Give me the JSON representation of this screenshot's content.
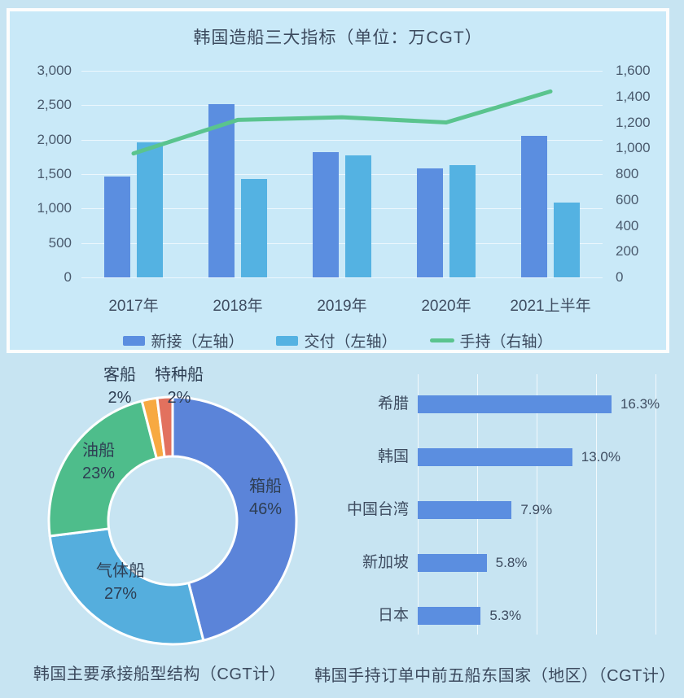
{
  "chart_data": [
    {
      "type": "bar",
      "name": "combo",
      "title": "韩国造船三大指标（单位：万CGT）",
      "categories": [
        "2017年",
        "2018年",
        "2019年",
        "2020年",
        "2021上半年"
      ],
      "left_axis": {
        "min": 0,
        "max": 3000,
        "ticks": [
          "3,000",
          "2,500",
          "2,000",
          "1,500",
          "1,000",
          "500",
          "0"
        ]
      },
      "right_axis": {
        "min": 0,
        "max": 1600,
        "ticks": [
          "1,600",
          "1,400",
          "1,200",
          "1,000",
          "800",
          "600",
          "400",
          "200",
          "0"
        ]
      },
      "series": [
        {
          "name": "新接（左轴）",
          "type": "bar",
          "axis": "left",
          "color": "#5b8ee0",
          "values": [
            1470,
            2520,
            1820,
            1580,
            2050
          ]
        },
        {
          "name": "交付（左轴）",
          "type": "bar",
          "axis": "left",
          "color": "#54b2e2",
          "values": [
            1960,
            1430,
            1770,
            1630,
            1090
          ]
        },
        {
          "name": "手持（右轴）",
          "type": "line",
          "axis": "right",
          "color": "#5ac48e",
          "values": [
            960,
            1220,
            1240,
            1200,
            1440
          ]
        }
      ],
      "legend_position": "bottom",
      "grid": true
    },
    {
      "type": "pie",
      "name": "donut",
      "caption": "韩国主要承接船型结构（CGT计）",
      "slices": [
        {
          "label": "箱船",
          "pct": 46,
          "display": "46%",
          "color": "#5b84d9"
        },
        {
          "label": "气体船",
          "pct": 27,
          "display": "27%",
          "color": "#55aedd"
        },
        {
          "label": "油船",
          "pct": 23,
          "display": "23%",
          "color": "#4ebd8b"
        },
        {
          "label": "客船",
          "pct": 2,
          "display": "2%",
          "color": "#f7a941"
        },
        {
          "label": "特种船",
          "pct": 2,
          "display": "2%",
          "color": "#e2715e"
        }
      ]
    },
    {
      "type": "bar",
      "name": "hbar",
      "caption": "韩国手持订单中前五船东国家（地区）（CGT计）",
      "bar_color": "#5b8ee0",
      "axis_max_pct": 20,
      "grid_step_pct": 5,
      "items": [
        {
          "label": "希腊",
          "value": 16.3,
          "display": "16.3%"
        },
        {
          "label": "韩国",
          "value": 13.0,
          "display": "13.0%"
        },
        {
          "label": "中国台湾",
          "value": 7.9,
          "display": "7.9%"
        },
        {
          "label": "新加坡",
          "value": 5.8,
          "display": "5.8%"
        },
        {
          "label": "日本",
          "value": 5.3,
          "display": "5.3%"
        }
      ]
    }
  ]
}
